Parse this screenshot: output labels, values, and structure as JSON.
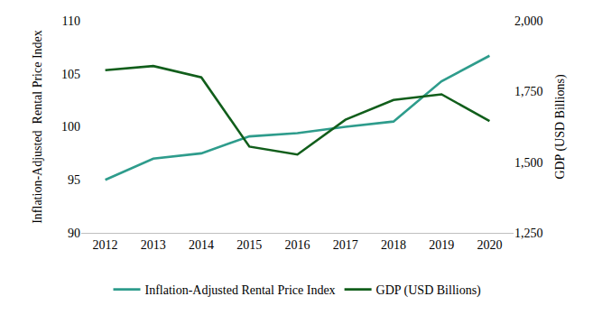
{
  "chart_data": {
    "type": "line",
    "categories": [
      "2012",
      "2013",
      "2014",
      "2015",
      "2016",
      "2017",
      "2018",
      "2019",
      "2020"
    ],
    "series": [
      {
        "name": "Inflation-Adjusted Rental Price Index",
        "color": "#2e9c8c",
        "values": [
          95.0,
          97.0,
          97.5,
          99.1,
          99.4,
          100.0,
          100.5,
          104.3,
          106.7
        ]
      },
      {
        "name": "GDP (USD Billions)",
        "color": "#115e1b",
        "axis": "y2",
        "values": [
          1825,
          1840,
          1800,
          1555,
          1527,
          1650,
          1720,
          1740,
          1645
        ]
      }
    ],
    "y_label": "Inflation-Adjusted  Rental Price Index",
    "y2_label": "GDP (USD Billions)",
    "ylim": [
      90,
      110
    ],
    "yticks": [
      90,
      95,
      100,
      105,
      110
    ],
    "y2lim": [
      1250,
      2000
    ],
    "y2ticks": [
      {
        "value": 1250,
        "label": "1,250"
      },
      {
        "value": 1500,
        "label": "1,500"
      },
      {
        "value": 1750,
        "label": "1,750"
      },
      {
        "value": 2000,
        "label": "2,000"
      }
    ],
    "grid": false,
    "legend": "bottom"
  }
}
